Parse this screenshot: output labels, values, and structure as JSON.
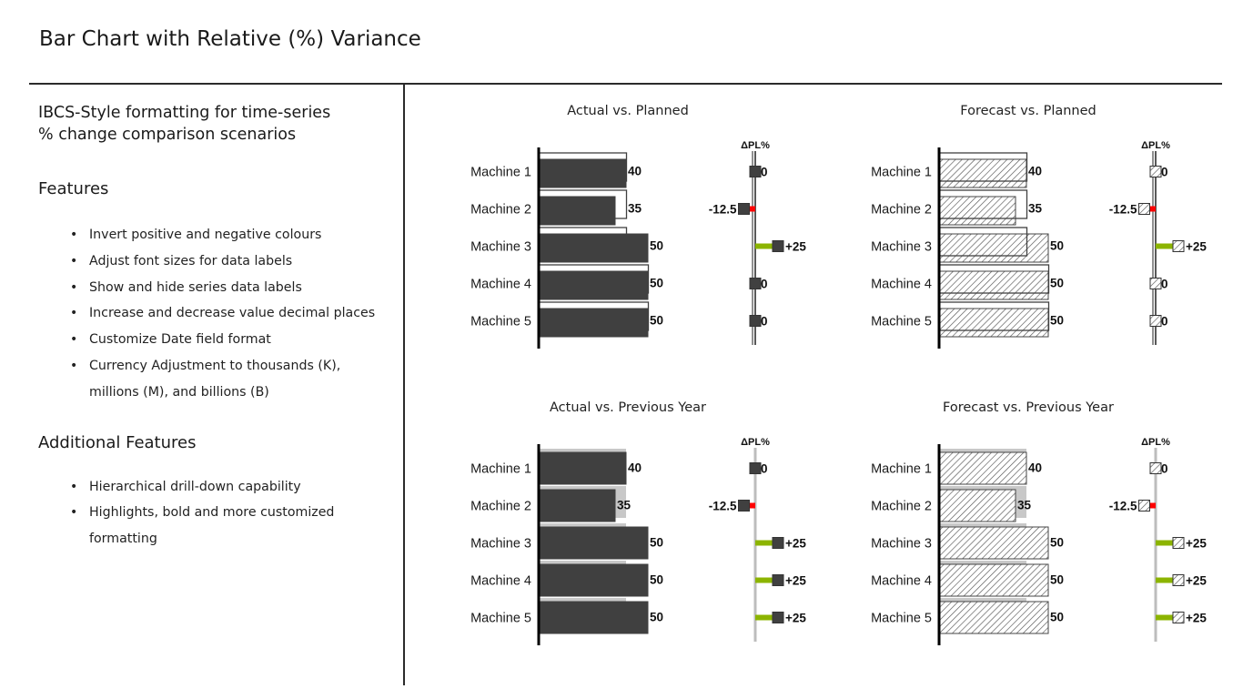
{
  "page_title": "Bar Chart with Relative (%) Variance",
  "left_panel": {
    "subtitle_line1": "IBCS-Style formatting for time-series",
    "subtitle_line2": "% change comparison scenarios",
    "features_heading": "Features",
    "features": [
      "Invert positive and negative colours",
      "Adjust font sizes for data labels",
      "Show and hide series data labels",
      "Increase and decrease value decimal places",
      "Customize Date field format",
      "Currency Adjustment to thousands (K),",
      "millions (M), and billions (B)"
    ],
    "additional_heading": "Additional Features",
    "additional_features": [
      "Hierarchical drill-down capability",
      "Highlights, bold and more customized",
      "formatting"
    ],
    "bullet_char": "•"
  },
  "colors": {
    "actual_bar": "#404040",
    "reference_outline": "#404040",
    "previous_year_bar": "#c8c8c8",
    "positive": "#8cb400",
    "negative": "#ff0000",
    "axis": "#000000"
  },
  "chart_data": [
    {
      "type": "bar",
      "title": "Actual vs. Planned",
      "categories": [
        "Machine 1",
        "Machine 2",
        "Machine 3",
        "Machine 4",
        "Machine 5"
      ],
      "series": [
        {
          "name": "",
          "role": "actual",
          "style": "solid",
          "values": [
            40,
            35,
            50,
            50,
            50
          ]
        },
        {
          "name": "",
          "role": "plan",
          "style": "outline",
          "values": [
            40,
            40,
            40,
            50,
            50
          ]
        }
      ],
      "variance_header": "ΔPL%",
      "variance_percent": [
        0,
        -12.5,
        25,
        0,
        0
      ],
      "variance_labels": [
        "0",
        "-12.5",
        "+25",
        "0",
        "0"
      ],
      "value_labels": [
        "40",
        "35",
        "50",
        "50",
        "50"
      ],
      "xlim": [
        0,
        50
      ]
    },
    {
      "type": "bar",
      "title": "Forecast vs. Planned",
      "categories": [
        "Machine 1",
        "Machine 2",
        "Machine 3",
        "Machine 4",
        "Machine 5"
      ],
      "series": [
        {
          "name": "",
          "role": "forecast",
          "style": "hatched",
          "values": [
            40,
            35,
            50,
            50,
            50
          ]
        },
        {
          "name": "",
          "role": "plan",
          "style": "outline",
          "values": [
            40,
            40,
            40,
            50,
            50
          ]
        }
      ],
      "variance_header": "ΔPL%",
      "variance_percent": [
        0,
        -12.5,
        25,
        0,
        0
      ],
      "variance_labels": [
        "0",
        "-12.5",
        "+25",
        "0",
        "0"
      ],
      "value_labels": [
        "40",
        "35",
        "50",
        "50",
        "50"
      ],
      "xlim": [
        0,
        50
      ]
    },
    {
      "type": "bar",
      "title": "Actual vs. Previous Year",
      "categories": [
        "Machine 1",
        "Machine 2",
        "Machine 3",
        "Machine 4",
        "Machine 5"
      ],
      "series": [
        {
          "name": "",
          "role": "actual",
          "style": "solid",
          "values": [
            40,
            35,
            50,
            50,
            50
          ]
        },
        {
          "name": "",
          "role": "previous_year",
          "style": "grey",
          "values": [
            40,
            40,
            40,
            40,
            40
          ]
        }
      ],
      "variance_header": "ΔPL%",
      "variance_percent": [
        0,
        -12.5,
        25,
        25,
        25
      ],
      "variance_labels": [
        "0",
        "-12.5",
        "+25",
        "+25",
        "+25"
      ],
      "value_labels": [
        "40",
        "35",
        "50",
        "50",
        "50"
      ],
      "xlim": [
        0,
        50
      ]
    },
    {
      "type": "bar",
      "title": "Forecast vs. Previous Year",
      "categories": [
        "Machine 1",
        "Machine 2",
        "Machine 3",
        "Machine 4",
        "Machine 5"
      ],
      "series": [
        {
          "name": "",
          "role": "forecast",
          "style": "hatched",
          "values": [
            40,
            35,
            50,
            50,
            50
          ]
        },
        {
          "name": "",
          "role": "previous_year",
          "style": "grey",
          "values": [
            40,
            40,
            40,
            40,
            40
          ]
        }
      ],
      "variance_header": "ΔPL%",
      "variance_percent": [
        0,
        -12.5,
        25,
        25,
        25
      ],
      "variance_labels": [
        "0",
        "-12.5",
        "+25",
        "+25",
        "+25"
      ],
      "value_labels": [
        "40",
        "35",
        "50",
        "50",
        "50"
      ],
      "xlim": [
        0,
        50
      ]
    }
  ]
}
